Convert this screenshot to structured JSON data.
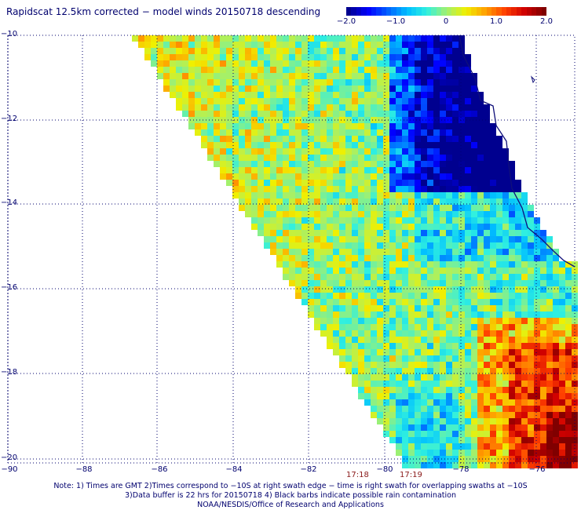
{
  "title": "Rapidscat 12.5km corrected − model winds 20150718 descending",
  "colorbar": {
    "ticks": [
      {
        "value": -2.0,
        "label": "−2.0"
      },
      {
        "value": -1.0,
        "label": "−1.0"
      },
      {
        "value": 0,
        "label": "0"
      },
      {
        "value": 1.0,
        "label": "1.0"
      },
      {
        "value": 2.0,
        "label": "2.0"
      }
    ],
    "colors": [
      "#00008f",
      "#0000ff",
      "#0060ff",
      "#00bfff",
      "#30f0e0",
      "#a0f070",
      "#f0f000",
      "#ffa000",
      "#ff4000",
      "#d00000",
      "#800000"
    ]
  },
  "map": {
    "lat_labels": [
      "−10",
      "−12",
      "−14",
      "−16",
      "−18",
      "−20"
    ],
    "lon_labels": [
      "−90",
      "−88",
      "−86",
      "−84",
      "−82",
      "−80",
      "−78",
      "−76"
    ],
    "swath_times": [
      "17:18",
      "17:19"
    ],
    "grid_color": "#00006e",
    "coast_color": "#10107a",
    "time_color": "#8a1a1a"
  },
  "notes": [
    "Note: 1) Times are GMT 2)Times correspond to −10S at right swath edge − time is right swath for overlapping swaths at −10S",
    "3)Data buffer is 22 hrs for 20150718 4) Black barbs indicate possible rain contamination",
    "NOAA/NESDIS/Office of Research and Applications"
  ]
}
